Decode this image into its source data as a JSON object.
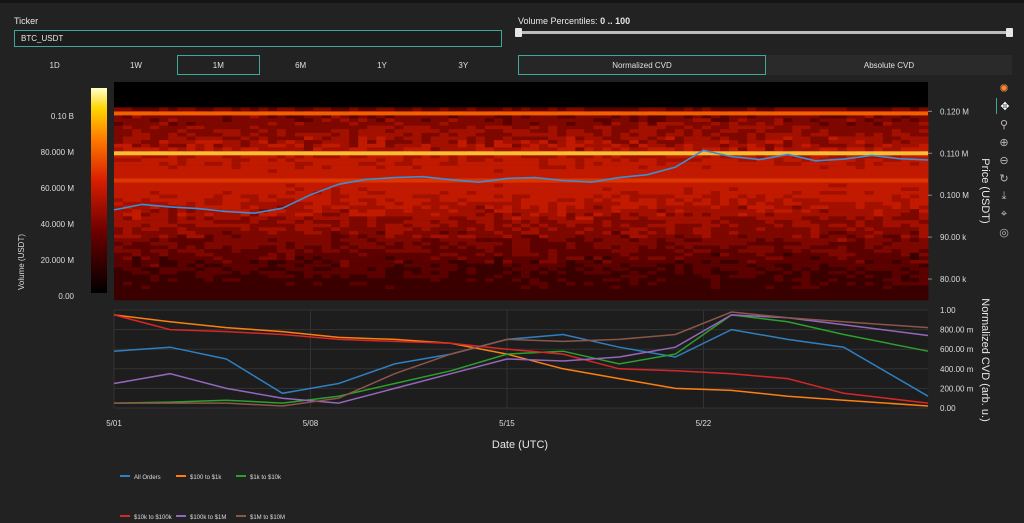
{
  "ticker": {
    "label": "Ticker",
    "value": "BTC_USDT"
  },
  "volume_percentiles": {
    "label": "Volume Percentiles:",
    "range": "0 .. 100",
    "low_pct": 0,
    "high_pct": 100
  },
  "timeframes": [
    {
      "label": "1D",
      "active": false
    },
    {
      "label": "1W",
      "active": false
    },
    {
      "label": "1M",
      "active": true
    },
    {
      "label": "6M",
      "active": false
    },
    {
      "label": "1Y",
      "active": false
    },
    {
      "label": "3Y",
      "active": false
    }
  ],
  "cvd_modes": [
    {
      "label": "Normalized CVD",
      "active": true
    },
    {
      "label": "Absolute CVD",
      "active": false
    }
  ],
  "modebar_icons": [
    "plotly-logo-icon",
    "pan-icon",
    "zoom-icon",
    "zoom-in-icon",
    "zoom-out-icon",
    "reset-axes-icon",
    "download-icon",
    "toggle-spike-icon",
    "hover-icon"
  ],
  "chart_data": [
    {
      "type": "heatmap",
      "colorbar": {
        "title": "Volume (USDT)",
        "ticks": [
          "0.10 B",
          "80.000 M",
          "60.000 M",
          "40.000 M",
          "20.000 M",
          "0.00"
        ]
      },
      "ylabel": "Price (USDT)",
      "y_ticks": [
        "0.120 M",
        "0.110 M",
        "0.100 M",
        "90.00 k",
        "80.00 k"
      ],
      "ylim": [
        75000,
        127000
      ],
      "price_series": {
        "x_day": [
          1,
          2,
          3,
          4,
          5,
          6,
          7,
          8,
          9,
          10,
          11,
          12,
          13,
          14,
          15,
          16,
          17,
          18,
          19,
          20,
          21,
          22,
          23,
          24,
          25,
          26,
          27,
          28,
          29,
          30
        ],
        "y": [
          96500,
          97800,
          97200,
          96800,
          96100,
          95700,
          96900,
          100100,
          102600,
          103800,
          104200,
          104400,
          103700,
          103100,
          104000,
          104200,
          103500,
          103100,
          104200,
          104900,
          106700,
          110700,
          109200,
          108500,
          109700,
          108200,
          108600,
          109500,
          108700,
          108400
        ]
      },
      "high_volume_levels": [
        {
          "price": 119500,
          "color": "#ff6a00"
        },
        {
          "price": 110000,
          "color": "#ffd23a"
        },
        {
          "price": 103500,
          "color": "#e13a00"
        }
      ]
    },
    {
      "type": "line",
      "xlabel": "Date (UTC)",
      "ylabel": "Normalized CVD (arb. u.)",
      "x_ticks": [
        "5/01",
        "5/08",
        "5/15",
        "5/22"
      ],
      "y_ticks": [
        "1.00",
        "800.00 m",
        "600.00 m",
        "400.00 m",
        "200.00 m",
        "0.00"
      ],
      "ylim": [
        0,
        1
      ],
      "x_day": [
        1,
        3,
        5,
        7,
        9,
        11,
        13,
        15,
        17,
        19,
        21,
        23,
        25,
        27,
        30
      ],
      "series": [
        {
          "name": "All Orders",
          "color": "#2f7fc1",
          "values": [
            0.58,
            0.62,
            0.5,
            0.15,
            0.25,
            0.45,
            0.55,
            0.7,
            0.75,
            0.62,
            0.52,
            0.8,
            0.7,
            0.62,
            0.12
          ]
        },
        {
          "name": "$100 to $1k",
          "color": "#ff7f0e",
          "values": [
            0.95,
            0.88,
            0.82,
            0.78,
            0.72,
            0.7,
            0.66,
            0.55,
            0.4,
            0.3,
            0.2,
            0.18,
            0.12,
            0.08,
            0.02
          ]
        },
        {
          "name": "$1k to $10k",
          "color": "#2ca02c",
          "values": [
            0.05,
            0.06,
            0.08,
            0.05,
            0.12,
            0.25,
            0.38,
            0.55,
            0.58,
            0.45,
            0.55,
            0.95,
            0.88,
            0.75,
            0.58
          ]
        },
        {
          "name": "$10k to $100k",
          "color": "#d62728",
          "values": [
            0.95,
            0.8,
            0.78,
            0.75,
            0.7,
            0.68,
            0.66,
            0.6,
            0.55,
            0.4,
            0.38,
            0.35,
            0.3,
            0.15,
            0.05
          ]
        },
        {
          "name": "$100k to $1M",
          "color": "#9467bd",
          "values": [
            0.25,
            0.35,
            0.2,
            0.1,
            0.05,
            0.2,
            0.35,
            0.5,
            0.48,
            0.52,
            0.62,
            0.95,
            0.92,
            0.85,
            0.74
          ]
        },
        {
          "name": "$1M to $10M",
          "color": "#8c564b",
          "values": [
            0.05,
            0.05,
            0.05,
            0.02,
            0.1,
            0.35,
            0.55,
            0.7,
            0.68,
            0.7,
            0.75,
            0.98,
            0.92,
            0.88,
            0.82
          ]
        }
      ]
    }
  ]
}
